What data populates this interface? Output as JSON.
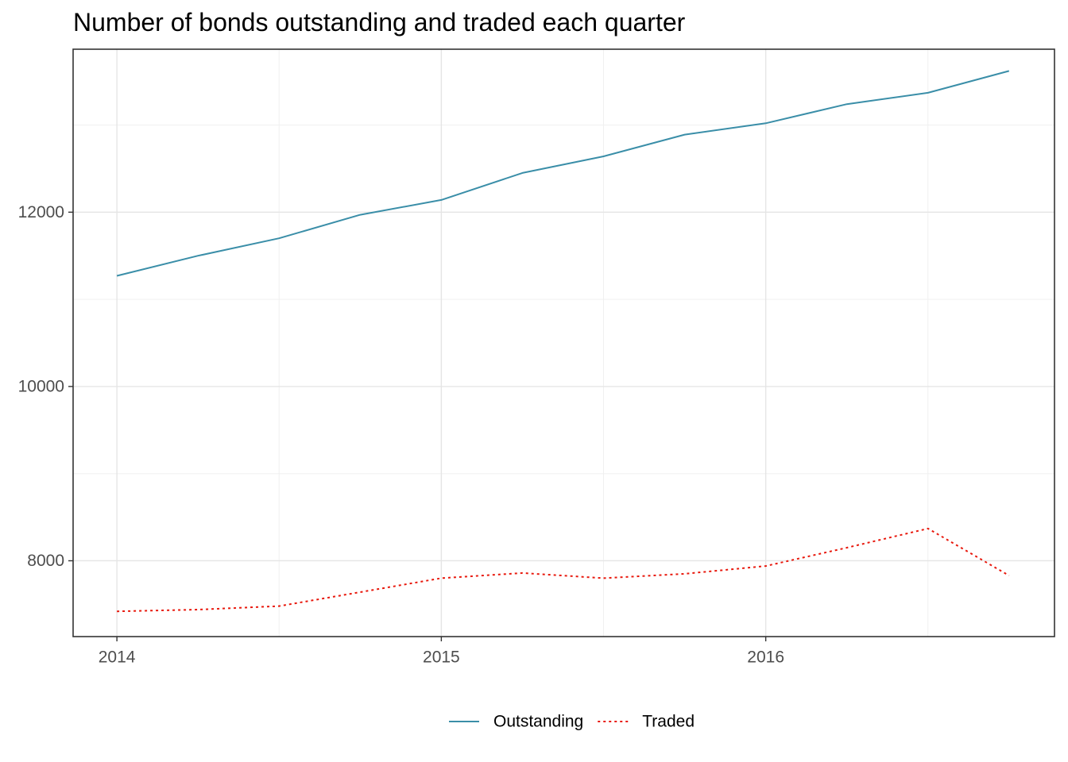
{
  "chart_data": {
    "type": "line",
    "title": "Number of bonds outstanding and traded each quarter",
    "xlabel": "",
    "ylabel": "",
    "x": [
      "2014-Q1",
      "2014-Q2",
      "2014-Q3",
      "2014-Q4",
      "2015-Q1",
      "2015-Q2",
      "2015-Q3",
      "2015-Q4",
      "2016-Q1",
      "2016-Q2",
      "2016-Q3",
      "2016-Q4"
    ],
    "x_ticks": [
      {
        "label": "2014",
        "value": 2014.0
      },
      {
        "label": "2015",
        "value": 2015.0
      },
      {
        "label": "2016",
        "value": 2016.0
      }
    ],
    "xlim": [
      2013.865,
      2016.89
    ],
    "y_ticks": [
      8000,
      10000,
      12000
    ],
    "ylim": [
      7130,
      13870
    ],
    "grid": true,
    "legend_position": "bottom",
    "series": [
      {
        "name": "Outstanding",
        "color": "#3a8ea8",
        "line_style": "solid",
        "values": [
          11270,
          11500,
          11700,
          11970,
          12140,
          12450,
          12640,
          12890,
          13020,
          13240,
          13370,
          13620
        ]
      },
      {
        "name": "Traded",
        "color": "#e8180c",
        "line_style": "dotted",
        "values": [
          7420,
          7440,
          7480,
          7640,
          7800,
          7860,
          7800,
          7850,
          7940,
          8150,
          8370,
          7830
        ]
      }
    ]
  }
}
